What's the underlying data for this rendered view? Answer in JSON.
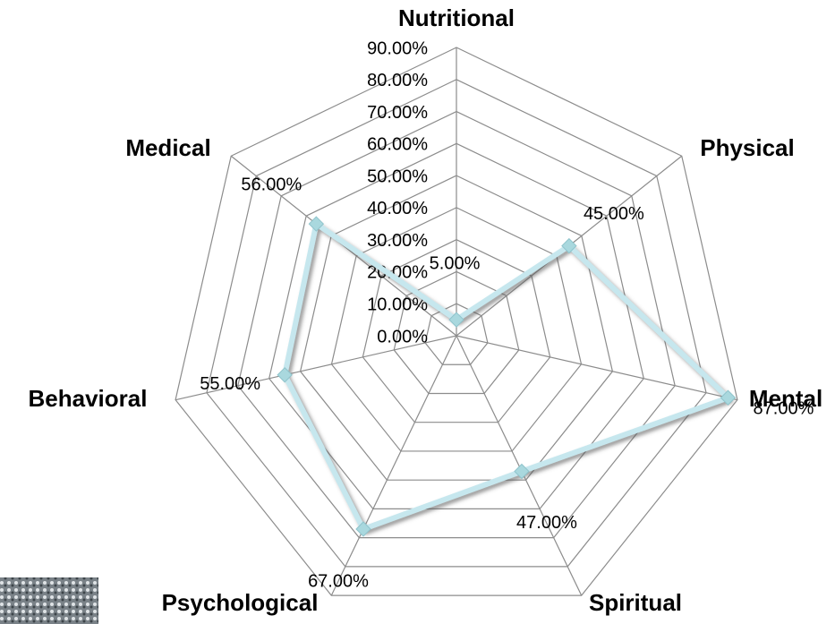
{
  "chart_data": {
    "type": "radar",
    "categories": [
      "Nutritional",
      "Physical",
      "Mental",
      "Spiritual",
      "Psychological",
      "Behavioral",
      "Medical"
    ],
    "values": [
      5,
      45,
      87,
      47,
      67,
      55,
      56
    ],
    "value_labels": [
      "5.00%",
      "45.00%",
      "87.00%",
      "47.00%",
      "67.00%",
      "55.00%",
      "56.00%"
    ],
    "color": "#c6e7ee",
    "ylim": [
      0,
      90
    ],
    "yticks": [
      {
        "value": 0,
        "label": "0.00%"
      },
      {
        "value": 10,
        "label": "10.00%"
      },
      {
        "value": 20,
        "label": "20.00%"
      },
      {
        "value": 30,
        "label": "30.00%"
      },
      {
        "value": 40,
        "label": "40.00%"
      },
      {
        "value": 50,
        "label": "50.00%"
      },
      {
        "value": 60,
        "label": "60.00%"
      },
      {
        "value": 70,
        "label": "70.00%"
      },
      {
        "value": 80,
        "label": "80.00%"
      },
      {
        "value": 90,
        "label": "90.00%"
      }
    ],
    "grid": true
  }
}
